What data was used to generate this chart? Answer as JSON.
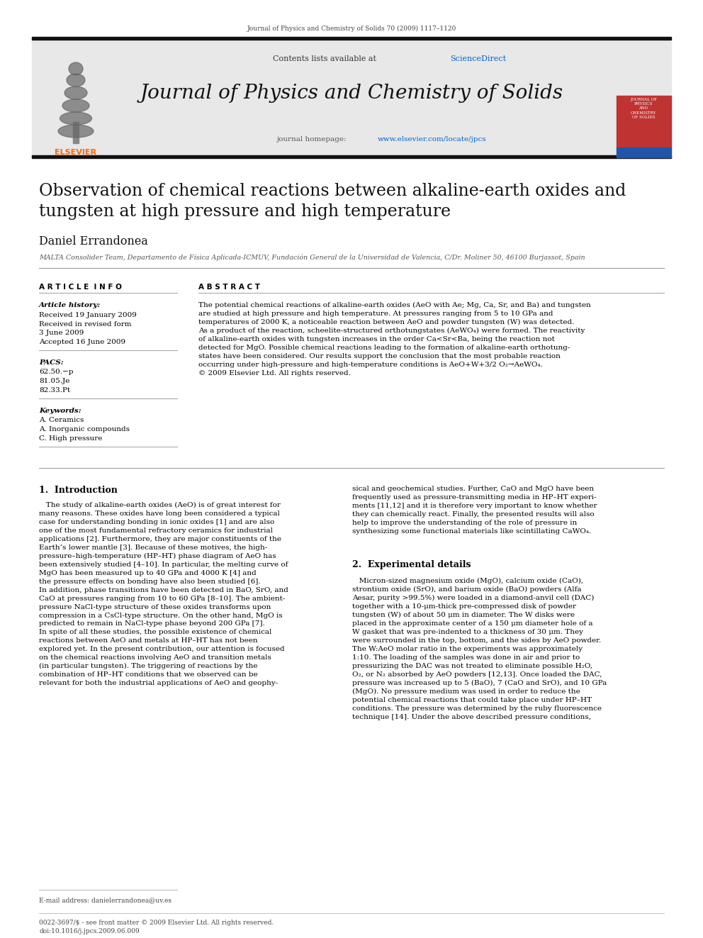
{
  "page_title": "Journal of Physics and Chemistry of Solids 70 (2009) 1117–1120",
  "journal_name": "Journal of Physics and Chemistry of Solids",
  "contents_line": "Contents lists available at ScienceDirect",
  "homepage_line": "journal homepage: www.elsevier.com/locate/jpcs",
  "sciencedirect_color": "#0066cc",
  "homepage_color": "#0066cc",
  "header_bg": "#e8e8e8",
  "article_title": "Observation of chemical reactions between alkaline-earth oxides and\ntungsten at high pressure and high temperature",
  "author": "Daniel Errandonea",
  "affiliation": "MALTA Consolider Team, Departamento de Física Aplicada-ICMUV, Fundación General de la Universidad de Valencia, C/Dr. Moliner 50, 46100 Burjassot, Spain",
  "article_info_label": "A R T I C L E  I N F O",
  "abstract_label": "A B S T R A C T",
  "article_history_label": "Article history:",
  "received_1": "Received 19 January 2009",
  "received_2": "Received in revised form",
  "received_2b": "3 June 2009",
  "accepted": "Accepted 16 June 2009",
  "pacs_label": "PACS:",
  "pacs_1": "62.50.−p",
  "pacs_2": "81.05.Je",
  "pacs_3": "82.33.Pt",
  "keywords_label": "Keywords:",
  "kw_1": "A. Ceramics",
  "kw_2": "A. Inorganic compounds",
  "kw_3": "C. High pressure",
  "abstract_text": "The potential chemical reactions of alkaline-earth oxides (AeO with Ae; Mg, Ca, Sr, and Ba) and tungsten\nare studied at high pressure and high temperature. At pressures ranging from 5 to 10 GPa and\ntemperatures of 2000 K, a noticeable reaction between AeO and powder tungsten (W) was detected.\nAs a product of the reaction, scheelite-structured orthotungstates (AeWO₄) were formed. The reactivity\nof alkaline-earth oxides with tungsten increases in the order Ca<Sr<Ba, being the reaction not\ndetected for MgO. Possible chemical reactions leading to the formation of alkaline-earth orthotung-\nstates have been considered. Our results support the conclusion that the most probable reaction\noccurring under high-pressure and high-temperature conditions is AeO+W+3/2 O₂→AeWO₄.\n© 2009 Elsevier Ltd. All rights reserved.",
  "section1_title": "1.  Introduction",
  "section1_col1": "   The study of alkaline-earth oxides (AeO) is of great interest for\nmany reasons. These oxides have long been considered a typical\ncase for understanding bonding in ionic oxides [1] and are also\none of the most fundamental refractory ceramics for industrial\napplications [2]. Furthermore, they are major constituents of the\nEarth’s lower mantle [3]. Because of these motives, the high-\npressure–high-temperature (HP–HT) phase diagram of AeO has\nbeen extensively studied [4–10]. In particular, the melting curve of\nMgO has been measured up to 40 GPa and 4000 K [4] and\nthe pressure effects on bonding have also been studied [6].\nIn addition, phase transitions have been detected in BaO, SrO, and\nCaO at pressures ranging from 10 to 60 GPa [8–10]. The ambient-\npressure NaCl-type structure of these oxides transforms upon\ncompression in a CsCl-type structure. On the other hand, MgO is\npredicted to remain in NaCl-type phase beyond 200 GPa [7].\nIn spite of all these studies, the possible existence of chemical\nreactions between AeO and metals at HP–HT has not been\nexplored yet. In the present contribution, our attention is focused\non the chemical reactions involving AeO and transition metals\n(in particular tungsten). The triggering of reactions by the\ncombination of HP–HT conditions that we observed can be\nrelevant for both the industrial applications of AeO and geophy-",
  "section1_col2_a": "sical and geochemical studies. Further, CaO and MgO have been\nfrequently used as pressure-transmitting media in HP–HT experi-\nments [11,12] and it is therefore very important to know whether\nthey can chemically react. Finally, the presented results will also\nhelp to improve the understanding of the role of pressure in\nsynthesizing some functional materials like scintillating CaWO₄.",
  "section2_title": "2.  Experimental details",
  "section2_col2": "   Micron-sized magnesium oxide (MgO), calcium oxide (CaO),\nstrontium oxide (SrO), and barium oxide (BaO) powders (Alfa\nAesar, purity >99.5%) were loaded in a diamond-anvil cell (DAC)\ntogether with a 10-μm-thick pre-compressed disk of powder\ntungsten (W) of about 50 μm in diameter. The W disks were\nplaced in the approximate center of a 150 μm diameter hole of a\nW gasket that was pre-indented to a thickness of 30 μm. They\nwere surrounded in the top, bottom, and the sides by AeO powder.\nThe W:AeO molar ratio in the experiments was approximately\n1:10. The loading of the samples was done in air and prior to\npressurizing the DAC was not treated to eliminate possible H₂O,\nO₂, or N₂ absorbed by AeO powders [12,13]. Once loaded the DAC,\npressure was increased up to 5 (BaO), 7 (CaO and SrO), and 10 GPa\n(MgO). No pressure medium was used in order to reduce the\npotential chemical reactions that could take place under HP–HT\nconditions. The pressure was determined by the ruby fluorescence\ntechnique [14]. Under the above described pressure conditions,",
  "email_label": "E-mail address: danielerrandonea@uv.es",
  "footer_left": "0022-3697/$ - see front matter © 2009 Elsevier Ltd. All rights reserved.",
  "footer_doi": "doi:10.1016/j.jpcs.2009.06.009",
  "link_color": "#0066cc",
  "bg_color": "#ffffff",
  "text_color": "#000000"
}
